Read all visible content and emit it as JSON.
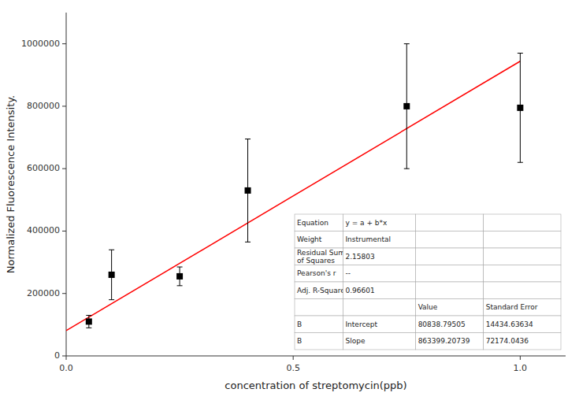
{
  "chart_data": {
    "type": "scatter",
    "xlabel": "concentration of streptomycin(ppb)",
    "ylabel": "Normalized Fluorescence Intensity.",
    "xlim": [
      0.0,
      1.1
    ],
    "ylim": [
      0,
      1100000
    ],
    "xticks": [
      {
        "value": 0,
        "label": "0.0"
      },
      0.5,
      {
        "value": 1,
        "label": "1.0"
      }
    ],
    "yticks": [
      0,
      200000,
      400000,
      600000,
      800000,
      1000000
    ],
    "grid": false,
    "series": [
      {
        "type": "line",
        "color": "#FF0000",
        "line_style": "solid",
        "x": [
          0.0,
          1.0
        ],
        "values": [
          80838.79505,
          944238.00244
        ]
      },
      {
        "type": "scatter",
        "color": "black",
        "marker": "square",
        "x": [
          0.05,
          0.1,
          0.25,
          0.4,
          0.75,
          1.0
        ],
        "values": [
          110000,
          260000,
          255000,
          530000,
          800000,
          795000
        ],
        "errors": [
          20000,
          80000,
          30000,
          165000,
          200000,
          175000
        ]
      }
    ],
    "table": [
      [
        "Equation",
        "y = a + b*x",
        null,
        null
      ],
      [
        "Weight",
        "Instrumental",
        null,
        null
      ],
      [
        "Residual Sum\nof Squares",
        "2.15803",
        null,
        null
      ],
      [
        "Pearson's r",
        "--",
        null,
        null
      ],
      [
        "Adj. R-Square",
        "0.96601",
        null,
        null
      ],
      [
        null,
        null,
        "Value",
        "Standard Error"
      ],
      [
        "B",
        "Intercept",
        "80838.79505",
        "14434.63634"
      ],
      [
        "B",
        "Slope",
        "863399.20739",
        "72174.0436"
      ]
    ]
  }
}
